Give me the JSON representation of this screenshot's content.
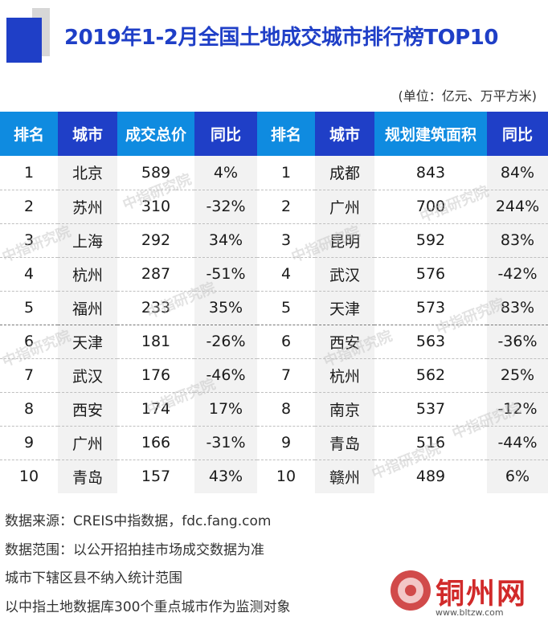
{
  "title": "2019年1-2月全国土地成交城市排行榜TOP10",
  "unit_note": "(单位：亿元、万平方米)",
  "headers": {
    "left": [
      "排名",
      "城市",
      "成交总价",
      "同比"
    ],
    "right": [
      "排名",
      "城市",
      "规划建筑面积",
      "同比"
    ]
  },
  "rows": [
    {
      "l_rank": "1",
      "l_city": "北京",
      "l_value": "589",
      "l_yoy": "4%",
      "r_rank": "1",
      "r_city": "成都",
      "r_value": "843",
      "r_yoy": "84%"
    },
    {
      "l_rank": "2",
      "l_city": "苏州",
      "l_value": "310",
      "l_yoy": "-32%",
      "r_rank": "2",
      "r_city": "广州",
      "r_value": "700",
      "r_yoy": "244%"
    },
    {
      "l_rank": "3",
      "l_city": "上海",
      "l_value": "292",
      "l_yoy": "34%",
      "r_rank": "3",
      "r_city": "昆明",
      "r_value": "592",
      "r_yoy": "83%"
    },
    {
      "l_rank": "4",
      "l_city": "杭州",
      "l_value": "287",
      "l_yoy": "-51%",
      "r_rank": "4",
      "r_city": "武汉",
      "r_value": "576",
      "r_yoy": "-42%"
    },
    {
      "l_rank": "5",
      "l_city": "福州",
      "l_value": "233",
      "l_yoy": "35%",
      "r_rank": "5",
      "r_city": "天津",
      "r_value": "573",
      "r_yoy": "83%"
    },
    {
      "l_rank": "6",
      "l_city": "天津",
      "l_value": "181",
      "l_yoy": "-26%",
      "r_rank": "6",
      "r_city": "西安",
      "r_value": "563",
      "r_yoy": "-36%"
    },
    {
      "l_rank": "7",
      "l_city": "武汉",
      "l_value": "176",
      "l_yoy": "-46%",
      "r_rank": "7",
      "r_city": "杭州",
      "r_value": "562",
      "r_yoy": "25%"
    },
    {
      "l_rank": "8",
      "l_city": "西安",
      "l_value": "174",
      "l_yoy": "17%",
      "r_rank": "8",
      "r_city": "南京",
      "r_value": "537",
      "r_yoy": "-12%"
    },
    {
      "l_rank": "9",
      "l_city": "广州",
      "l_value": "166",
      "l_yoy": "-31%",
      "r_rank": "9",
      "r_city": "青岛",
      "r_value": "516",
      "r_yoy": "-44%"
    },
    {
      "l_rank": "10",
      "l_city": "青岛",
      "l_value": "157",
      "l_yoy": "43%",
      "r_rank": "10",
      "r_city": "赣州",
      "r_value": "489",
      "r_yoy": "6%"
    }
  ],
  "notes": [
    "数据来源：CREIS中指数据，fdc.fang.com",
    "数据范围：以公开招拍挂市场成交数据为准",
    "城市下辖区县不纳入统计范围",
    "以中指土地数据库300个重点城市作为监测对象"
  ],
  "watermark_text": "中指研究院",
  "logo": {
    "name": "铜州网",
    "url": "www.bltzw.com"
  },
  "colors": {
    "brand_blue": "#1f3fc7",
    "header_light_blue": "#0f8be0",
    "logo_red": "#d12a2a"
  }
}
